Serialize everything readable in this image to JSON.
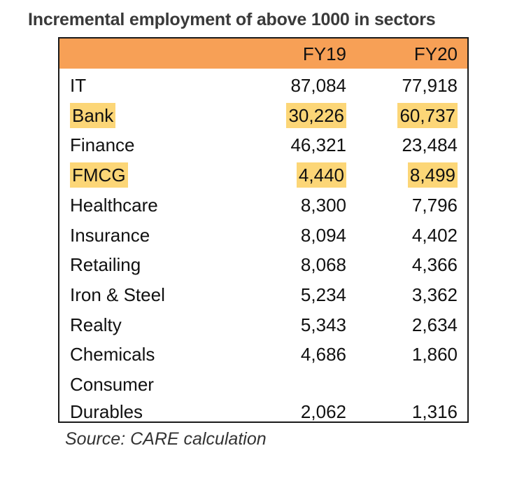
{
  "chart_data": {
    "type": "table",
    "title": "Incremental employment of above 1000 in sectors",
    "columns": [
      "",
      "FY19",
      "FY20"
    ],
    "rows": [
      {
        "sector": "IT",
        "fy19": "87,084",
        "fy20": "77,918",
        "highlight": false
      },
      {
        "sector": "Bank",
        "fy19": "30,226",
        "fy20": "60,737",
        "highlight": true
      },
      {
        "sector": "Finance",
        "fy19": "46,321",
        "fy20": "23,484",
        "highlight": false
      },
      {
        "sector": "FMCG",
        "fy19": "4,440",
        "fy20": "8,499",
        "highlight": true
      },
      {
        "sector": "Healthcare",
        "fy19": "8,300",
        "fy20": "7,796",
        "highlight": false
      },
      {
        "sector": "Insurance",
        "fy19": "8,094",
        "fy20": "4,402",
        "highlight": false
      },
      {
        "sector": "Retailing",
        "fy19": "8,068",
        "fy20": "4,366",
        "highlight": false
      },
      {
        "sector": "Iron & Steel",
        "fy19": "5,234",
        "fy20": "3,362",
        "highlight": false
      },
      {
        "sector": "Realty",
        "fy19": "5,343",
        "fy20": "2,634",
        "highlight": false
      },
      {
        "sector": "Chemicals",
        "fy19": "4,686",
        "fy20": "1,860",
        "highlight": false
      },
      {
        "sector": "Consumer Durables",
        "sector_line1": "Consumer",
        "sector_line2": "Durables",
        "fy19": "2,062",
        "fy20": "1,316",
        "highlight": false
      }
    ],
    "header_color": "#f7a056",
    "highlight_color": "#fcd677",
    "source": "Source: CARE calculation"
  }
}
